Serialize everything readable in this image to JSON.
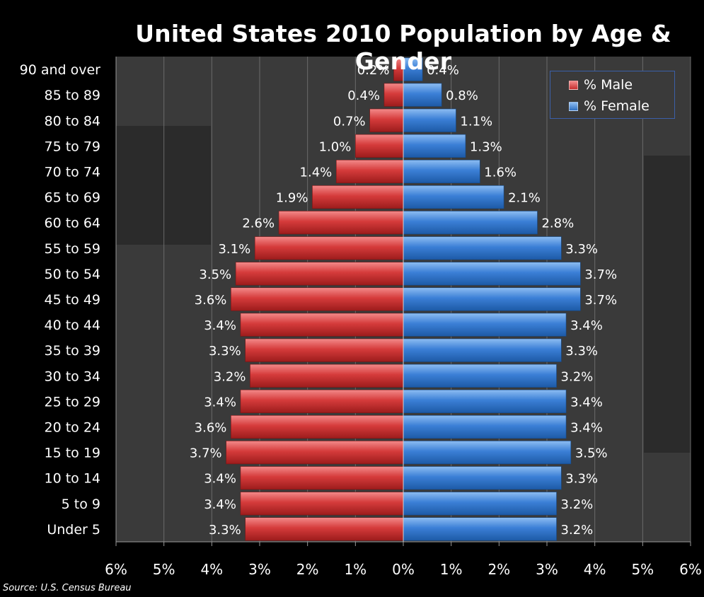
{
  "chart_data": {
    "type": "bar",
    "orientation": "horizontal-pyramid",
    "title": "United States 2010 Population by Age & Gender",
    "categories": [
      "90 and over",
      "85 to 89",
      "80 to 84",
      "75 to 79",
      "70 to 74",
      "65 to 69",
      "60 to 64",
      "55 to 59",
      "50 to 54",
      "45 to 49",
      "40 to 44",
      "35 to 39",
      "30 to 34",
      "25 to 29",
      "20 to 24",
      "15 to 19",
      "10 to 14",
      "5 to 9",
      "Under 5"
    ],
    "series": [
      {
        "name": "% Male",
        "color": "#d43a3a",
        "values": [
          0.2,
          0.4,
          0.7,
          1.0,
          1.4,
          1.9,
          2.6,
          3.1,
          3.5,
          3.6,
          3.4,
          3.3,
          3.2,
          3.4,
          3.6,
          3.7,
          3.4,
          3.4,
          3.3
        ],
        "labels": [
          "0.2%",
          "0.4%",
          "0.7%",
          "1.0%",
          "1.4%",
          "1.9%",
          "2.6%",
          "3.1%",
          "3.5%",
          "3.6%",
          "3.4%",
          "3.3%",
          "3.2%",
          "3.4%",
          "3.6%",
          "3.7%",
          "3.4%",
          "3.4%",
          "3.3%"
        ]
      },
      {
        "name": "% Female",
        "color": "#3a7fd4",
        "values": [
          0.4,
          0.8,
          1.1,
          1.3,
          1.6,
          2.1,
          2.8,
          3.3,
          3.7,
          3.7,
          3.4,
          3.3,
          3.2,
          3.4,
          3.4,
          3.5,
          3.3,
          3.2,
          3.2
        ],
        "labels": [
          "0.4%",
          "0.8%",
          "1.1%",
          "1.3%",
          "1.6%",
          "2.1%",
          "2.8%",
          "3.3%",
          "3.7%",
          "3.7%",
          "3.4%",
          "3.3%",
          "3.2%",
          "3.4%",
          "3.4%",
          "3.5%",
          "3.3%",
          "3.2%",
          "3.2%"
        ]
      }
    ],
    "x_ticks": [
      -6,
      -5,
      -4,
      -3,
      -2,
      -1,
      0,
      1,
      2,
      3,
      4,
      5,
      6
    ],
    "x_tick_labels": [
      "6%",
      "5%",
      "4%",
      "3%",
      "2%",
      "1%",
      "0%",
      "1%",
      "2%",
      "3%",
      "4%",
      "5%",
      "6%"
    ],
    "xlim": [
      -6,
      6
    ],
    "grid": true,
    "legend_position": "top-right"
  },
  "source": "Source: U.S. Census Bureau"
}
